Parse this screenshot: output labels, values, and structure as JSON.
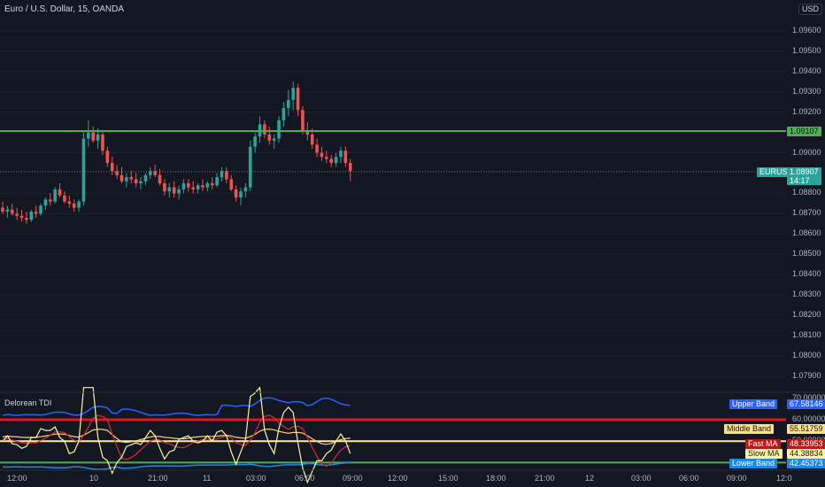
{
  "header": {
    "symbol_title": "Euro / U.S. Dollar, 15, OANDA",
    "currency_button": "USD"
  },
  "indicator": {
    "title": "Delorean TDI"
  },
  "price_pane": {
    "axis_labels": [
      "1.09600",
      "1.09500",
      "1.09400",
      "1.09300",
      "1.09200",
      "1.09000",
      "1.08800",
      "1.08700",
      "1.08600",
      "1.08500",
      "1.08400",
      "1.08300",
      "1.08200",
      "1.08100",
      "1.08000",
      "1.07900"
    ],
    "axis_values": [
      1.096,
      1.095,
      1.094,
      1.093,
      1.092,
      1.09,
      1.088,
      1.087,
      1.086,
      1.085,
      1.084,
      1.083,
      1.082,
      1.081,
      1.08,
      1.079
    ],
    "hline": {
      "value": 1.09107,
      "label": "1.09107",
      "color": "#4caf50"
    },
    "last_price": {
      "symbol": "EURUSD",
      "value": 1.08907,
      "label": "1.08907",
      "countdown": "14:17",
      "color": "#26a69a"
    }
  },
  "indicator_pane": {
    "axis_labels": [
      "70.00000",
      "60.00000",
      "50.00000",
      "40.00000"
    ],
    "axis_values": [
      70,
      60,
      50,
      40
    ],
    "tags": [
      {
        "name": "Upper Band",
        "value": "67.58146",
        "color": "#2962ff",
        "text_color": "#ffffff"
      },
      {
        "name": "Middle Band",
        "value": "55.51759",
        "color": "#ffe082",
        "text_color": "#131722"
      },
      {
        "name": "Fast MA",
        "value": "48.33953",
        "color": "#b71c1c",
        "text_color": "#ffffff"
      },
      {
        "name": "Slow MA",
        "value": "44.38834",
        "color": "#fff59d",
        "text_color": "#131722"
      },
      {
        "name": "Lower Band",
        "value": "42.45373",
        "color": "#1e88e5",
        "text_color": "#ffffff"
      }
    ],
    "levels": [
      {
        "value": 60,
        "color": "#e3121d"
      },
      {
        "value": 50,
        "color": "#ffe9a6"
      },
      {
        "value": 40,
        "color": "#4caf50"
      }
    ]
  },
  "time_axis": {
    "labels": [
      "12:00",
      "10",
      "21:00",
      "11",
      "03:00",
      "06:00",
      "09:00",
      "12:00",
      "15:00",
      "18:00",
      "21:00",
      "12",
      "03:00",
      "06:00",
      "09:00",
      "12:0"
    ]
  },
  "chart_data": {
    "type": "candlestick",
    "title": "Euro / U.S. Dollar, 15, OANDA",
    "up_color": "#26a69a",
    "down_color": "#ef5350",
    "ylim": [
      1.0785,
      1.0968
    ],
    "candles": [
      [
        1.0873,
        1.0876,
        1.087,
        1.0871
      ],
      [
        1.0871,
        1.0874,
        1.0868,
        1.0872
      ],
      [
        1.0872,
        1.0875,
        1.0869,
        1.087
      ],
      [
        1.087,
        1.0873,
        1.0867,
        1.0869
      ],
      [
        1.0869,
        1.0872,
        1.0866,
        1.0868
      ],
      [
        1.0868,
        1.0871,
        1.0865,
        1.0867
      ],
      [
        1.0867,
        1.0872,
        1.0866,
        1.0871
      ],
      [
        1.0871,
        1.0874,
        1.0868,
        1.087
      ],
      [
        1.087,
        1.0875,
        1.0869,
        1.0874
      ],
      [
        1.0874,
        1.0878,
        1.0872,
        1.0877
      ],
      [
        1.0877,
        1.088,
        1.0874,
        1.0876
      ],
      [
        1.0876,
        1.0883,
        1.0875,
        1.0882
      ],
      [
        1.0882,
        1.0885,
        1.0878,
        1.0879
      ],
      [
        1.0879,
        1.0881,
        1.0875,
        1.0876
      ],
      [
        1.0876,
        1.0879,
        1.0873,
        1.0875
      ],
      [
        1.0875,
        1.0877,
        1.0871,
        1.0873
      ],
      [
        1.0873,
        1.0877,
        1.0871,
        1.0876
      ],
      [
        1.0876,
        1.091,
        1.0874,
        1.0907
      ],
      [
        1.0907,
        1.0916,
        1.0903,
        1.091
      ],
      [
        1.091,
        1.0913,
        1.0905,
        1.0906
      ],
      [
        1.0906,
        1.0912,
        1.0902,
        1.0909
      ],
      [
        1.0909,
        1.0911,
        1.0899,
        1.0901
      ],
      [
        1.0901,
        1.0903,
        1.0893,
        1.0895
      ],
      [
        1.0895,
        1.0898,
        1.0889,
        1.0891
      ],
      [
        1.0891,
        1.0894,
        1.0887,
        1.0889
      ],
      [
        1.0889,
        1.0893,
        1.0885,
        1.0886
      ],
      [
        1.0886,
        1.089,
        1.0883,
        1.0888
      ],
      [
        1.0888,
        1.0891,
        1.0885,
        1.0887
      ],
      [
        1.0887,
        1.089,
        1.0883,
        1.0885
      ],
      [
        1.0885,
        1.0888,
        1.0882,
        1.0886
      ],
      [
        1.0886,
        1.089,
        1.0884,
        1.0889
      ],
      [
        1.0889,
        1.0893,
        1.0887,
        1.0891
      ],
      [
        1.0891,
        1.0894,
        1.0888,
        1.0889
      ],
      [
        1.0889,
        1.0892,
        1.0884,
        1.0885
      ],
      [
        1.0885,
        1.0887,
        1.0879,
        1.0881
      ],
      [
        1.0881,
        1.0885,
        1.0878,
        1.0883
      ],
      [
        1.0883,
        1.0886,
        1.0878,
        1.088
      ],
      [
        1.088,
        1.0884,
        1.0877,
        1.0882
      ],
      [
        1.0882,
        1.0887,
        1.088,
        1.0885
      ],
      [
        1.0885,
        1.0887,
        1.0881,
        1.0883
      ],
      [
        1.0883,
        1.0886,
        1.088,
        1.0882
      ],
      [
        1.0882,
        1.0885,
        1.088,
        1.0884
      ],
      [
        1.0884,
        1.0887,
        1.0881,
        1.0883
      ],
      [
        1.0883,
        1.0886,
        1.0881,
        1.0885
      ],
      [
        1.0885,
        1.0888,
        1.0882,
        1.0884
      ],
      [
        1.0884,
        1.089,
        1.0883,
        1.0888
      ],
      [
        1.0888,
        1.0893,
        1.0886,
        1.0891
      ],
      [
        1.0891,
        1.0893,
        1.0885,
        1.0887
      ],
      [
        1.0887,
        1.0889,
        1.0881,
        1.0882
      ],
      [
        1.0882,
        1.0884,
        1.0876,
        1.0878
      ],
      [
        1.0878,
        1.0883,
        1.0874,
        1.0881
      ],
      [
        1.0881,
        1.0885,
        1.0878,
        1.0883
      ],
      [
        1.0883,
        1.0906,
        1.0881,
        1.0903
      ],
      [
        1.0903,
        1.091,
        1.09,
        1.0908
      ],
      [
        1.0908,
        1.0918,
        1.0905,
        1.0914
      ],
      [
        1.0914,
        1.0916,
        1.0907,
        1.0909
      ],
      [
        1.0909,
        1.0913,
        1.0904,
        1.0906
      ],
      [
        1.0906,
        1.0909,
        1.0902,
        1.0907
      ],
      [
        1.0907,
        1.0918,
        1.0905,
        1.0916
      ],
      [
        1.0916,
        1.0925,
        1.0913,
        1.0922
      ],
      [
        1.0922,
        1.0931,
        1.0918,
        1.0926
      ],
      [
        1.0926,
        1.0935,
        1.0921,
        1.0932
      ],
      [
        1.0932,
        1.0934,
        1.0918,
        1.0921
      ],
      [
        1.0921,
        1.0923,
        1.0909,
        1.0911
      ],
      [
        1.0911,
        1.0915,
        1.0906,
        1.0909
      ],
      [
        1.0909,
        1.0912,
        1.0902,
        1.0904
      ],
      [
        1.0904,
        1.0907,
        1.0898,
        1.09
      ],
      [
        1.09,
        1.0903,
        1.0896,
        1.0898
      ],
      [
        1.0898,
        1.0901,
        1.0895,
        1.0897
      ],
      [
        1.0897,
        1.0899,
        1.0893,
        1.0895
      ],
      [
        1.0895,
        1.09,
        1.0893,
        1.0898
      ],
      [
        1.0898,
        1.0903,
        1.0895,
        1.0901
      ],
      [
        1.0901,
        1.0903,
        1.0893,
        1.0895
      ],
      [
        1.0895,
        1.0897,
        1.0886,
        1.0891
      ]
    ]
  }
}
